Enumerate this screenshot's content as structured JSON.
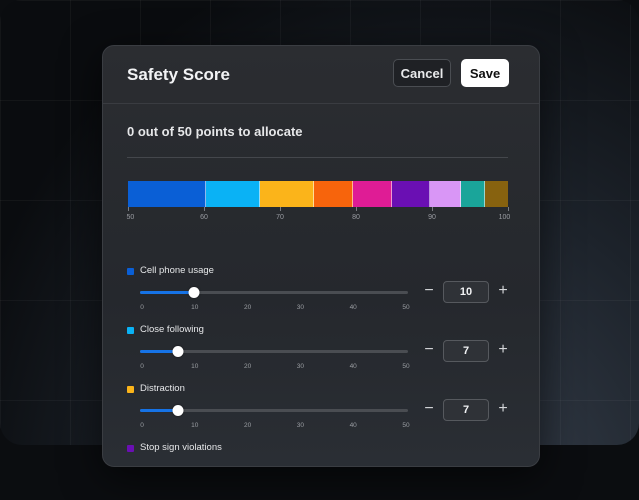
{
  "dialog": {
    "title": "Safety Score",
    "cancel_label": "Cancel",
    "save_label": "Save",
    "allocation_text": "0 out of 50 points to allocate"
  },
  "distribution_bar": {
    "segments": [
      {
        "color": "#0a5fd6",
        "value": 10
      },
      {
        "color": "#0ab2f5",
        "value": 7
      },
      {
        "color": "#fbb41a",
        "value": 7
      },
      {
        "color": "#f7640c",
        "value": 5
      },
      {
        "color": "#df1c95",
        "value": 5
      },
      {
        "color": "#6a0fb3",
        "value": 5
      },
      {
        "color": "#d996f6",
        "value": 4
      },
      {
        "color": "#1aa59a",
        "value": 3
      },
      {
        "color": "#87620f",
        "value": 3
      }
    ],
    "axis_ticks": [
      "50",
      "60",
      "70",
      "80",
      "90",
      "100"
    ]
  },
  "slider_ticks": [
    "0",
    "10",
    "20",
    "30",
    "40",
    "50"
  ],
  "factors": [
    {
      "label": "Cell phone usage",
      "color": "#0a5fd6",
      "value": "10",
      "max": 50
    },
    {
      "label": "Close following",
      "color": "#0ab2f5",
      "value": "7",
      "max": 50
    },
    {
      "label": "Distraction",
      "color": "#fbb41a",
      "value": "7",
      "max": 50
    },
    {
      "label": "Stop sign violations",
      "color": "#6a0fb3",
      "value": "",
      "max": 50
    }
  ],
  "icons": {
    "minus": "minus-icon",
    "plus": "plus-icon"
  }
}
